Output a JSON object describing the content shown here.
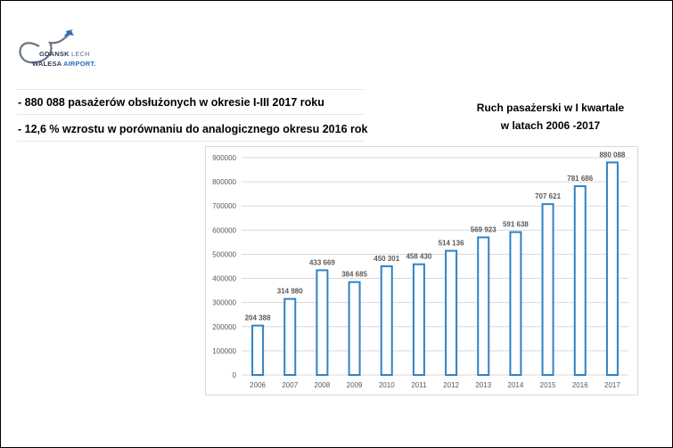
{
  "logo": {
    "line1_main": "GDANSK",
    "line1_alt": "LECH",
    "line2_main": "WALESA",
    "line2_alt": "AIRPORT."
  },
  "bullets": [
    "- 880 088 pasażerów obsłużonych w okresie I-III 2017 roku",
    "- 12,6 % wzrostu w porównaniu do analogicznego okresu 2016 rok"
  ],
  "chart_title_lines": [
    "Ruch pasażerski w I kwartale",
    "w latach 2006 -2017"
  ],
  "colors": {
    "bar_stroke": "#2f82c5",
    "grid": "#d9d9d9",
    "text": "#595959"
  },
  "chart_data": {
    "type": "bar",
    "title": "Ruch pasażerski w I kwartale w latach 2006 -2017",
    "categories": [
      "2006",
      "2007",
      "2008",
      "2009",
      "2010",
      "2011",
      "2012",
      "2013",
      "2014",
      "2015",
      "2016",
      "2017"
    ],
    "values": [
      204388,
      314980,
      433669,
      384685,
      450301,
      458430,
      514136,
      569923,
      591638,
      707621,
      781686,
      880088
    ],
    "data_labels": [
      "204 388",
      "314 980",
      "433 669",
      "384 685",
      "450 301",
      "458 430",
      "514 136",
      "569 923",
      "591 638",
      "707 621",
      "781 686",
      "880 088"
    ],
    "ylim": [
      0,
      900000
    ],
    "yticks": [
      0,
      100000,
      200000,
      300000,
      400000,
      500000,
      600000,
      700000,
      800000,
      900000
    ],
    "ytick_labels": [
      "0",
      "100000",
      "200000",
      "300000",
      "400000",
      "500000",
      "600000",
      "700000",
      "800000",
      "900000"
    ],
    "xlabel": "",
    "ylabel": "",
    "grid": true,
    "legend": "none"
  }
}
